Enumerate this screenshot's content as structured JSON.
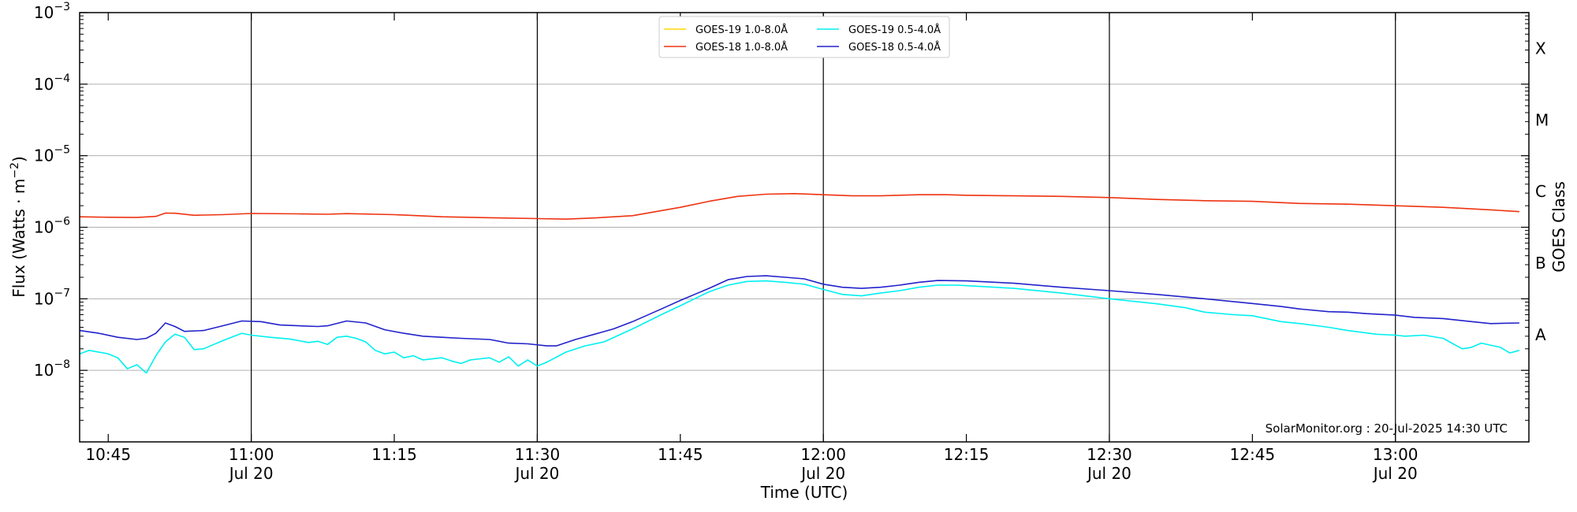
{
  "chart_data": {
    "type": "line",
    "title": "",
    "xlabel": "Time (UTC)",
    "ylabel_main": "Flux (Watts · m",
    "ylabel_sup": "−2",
    "ylabel_close": ")",
    "right_axis_label": "GOES Class",
    "yscale": "log",
    "ylim": [
      1e-09,
      0.001
    ],
    "xlim": [
      "10:42",
      "13:14"
    ],
    "grid": "horizontal gridlines at each decade; vertical lines at date-labelled ticks",
    "legend_placement": "top-center",
    "x_ticks": [
      {
        "time": "10:45",
        "label": "10:45",
        "sublabel": "",
        "major": false
      },
      {
        "time": "11:00",
        "label": "11:00",
        "sublabel": "Jul 20",
        "major": true
      },
      {
        "time": "11:15",
        "label": "11:15",
        "sublabel": "",
        "major": false
      },
      {
        "time": "11:30",
        "label": "11:30",
        "sublabel": "Jul 20",
        "major": true
      },
      {
        "time": "11:45",
        "label": "11:45",
        "sublabel": "",
        "major": false
      },
      {
        "time": "12:00",
        "label": "12:00",
        "sublabel": "Jul 20",
        "major": true
      },
      {
        "time": "12:15",
        "label": "12:15",
        "sublabel": "",
        "major": false
      },
      {
        "time": "12:30",
        "label": "12:30",
        "sublabel": "Jul 20",
        "major": true
      },
      {
        "time": "12:45",
        "label": "12:45",
        "sublabel": "",
        "major": false
      },
      {
        "time": "13:00",
        "label": "13:00",
        "sublabel": "Jul 20",
        "major": true
      }
    ],
    "y_ticks": [
      {
        "value": 1e-08,
        "mantissa": "10",
        "exponent": "−8"
      },
      {
        "value": 1e-07,
        "mantissa": "10",
        "exponent": "−7"
      },
      {
        "value": 1e-06,
        "mantissa": "10",
        "exponent": "−6"
      },
      {
        "value": 1e-05,
        "mantissa": "10",
        "exponent": "−5"
      },
      {
        "value": 0.0001,
        "mantissa": "10",
        "exponent": "−4"
      },
      {
        "value": 0.001,
        "mantissa": "10",
        "exponent": "−3"
      }
    ],
    "goes_classes": [
      {
        "label": "A",
        "value": 3.16e-08
      },
      {
        "label": "B",
        "value": 3.16e-07
      },
      {
        "label": "C",
        "value": 3.16e-06
      },
      {
        "label": "M",
        "value": 3.16e-05
      },
      {
        "label": "X",
        "value": 0.000316
      }
    ],
    "footer": "SolarMonitor.org : 20-Jul-2025 14:30 UTC",
    "series": [
      {
        "name": "GOES-19 1.0-8.0Å",
        "color": "#ffd700",
        "points": []
      },
      {
        "name": "GOES-18 1.0-8.0Å",
        "color": "#ee3311",
        "points": [
          [
            "10:42",
            1.4e-06
          ],
          [
            "10:45",
            1.38e-06
          ],
          [
            "10:48",
            1.37e-06
          ],
          [
            "10:50",
            1.42e-06
          ],
          [
            "10:51",
            1.58e-06
          ],
          [
            "10:52",
            1.57e-06
          ],
          [
            "10:54",
            1.47e-06
          ],
          [
            "10:57",
            1.5e-06
          ],
          [
            "11:00",
            1.56e-06
          ],
          [
            "11:05",
            1.54e-06
          ],
          [
            "11:08",
            1.52e-06
          ],
          [
            "11:10",
            1.55e-06
          ],
          [
            "11:15",
            1.5e-06
          ],
          [
            "11:20",
            1.4e-06
          ],
          [
            "11:25",
            1.36e-06
          ],
          [
            "11:30",
            1.32e-06
          ],
          [
            "11:33",
            1.3e-06
          ],
          [
            "11:36",
            1.35e-06
          ],
          [
            "11:40",
            1.45e-06
          ],
          [
            "11:45",
            1.9e-06
          ],
          [
            "11:48",
            2.3e-06
          ],
          [
            "11:51",
            2.7e-06
          ],
          [
            "11:54",
            2.9e-06
          ],
          [
            "11:57",
            2.95e-06
          ],
          [
            "12:00",
            2.85e-06
          ],
          [
            "12:03",
            2.75e-06
          ],
          [
            "12:06",
            2.75e-06
          ],
          [
            "12:10",
            2.85e-06
          ],
          [
            "12:13",
            2.85e-06
          ],
          [
            "12:15",
            2.8e-06
          ],
          [
            "12:20",
            2.75e-06
          ],
          [
            "12:25",
            2.7e-06
          ],
          [
            "12:30",
            2.6e-06
          ],
          [
            "12:35",
            2.45e-06
          ],
          [
            "12:40",
            2.35e-06
          ],
          [
            "12:45",
            2.3e-06
          ],
          [
            "12:50",
            2.15e-06
          ],
          [
            "12:55",
            2.1e-06
          ],
          [
            "13:00",
            2e-06
          ],
          [
            "13:05",
            1.9e-06
          ],
          [
            "13:10",
            1.75e-06
          ],
          [
            "13:13",
            1.65e-06
          ]
        ]
      },
      {
        "name": "GOES-19 0.5-4.0Å",
        "color": "#00f0f0",
        "points": [
          [
            "10:42",
            1.7e-08
          ],
          [
            "10:43",
            1.9e-08
          ],
          [
            "10:45",
            1.7e-08
          ],
          [
            "10:46",
            1.5e-08
          ],
          [
            "10:47",
            1.05e-08
          ],
          [
            "10:48",
            1.2e-08
          ],
          [
            "10:49",
            9.2e-09
          ],
          [
            "10:50",
            1.6e-08
          ],
          [
            "10:51",
            2.5e-08
          ],
          [
            "10:52",
            3.2e-08
          ],
          [
            "10:53",
            2.9e-08
          ],
          [
            "10:54",
            1.95e-08
          ],
          [
            "10:55",
            2e-08
          ],
          [
            "10:57",
            2.6e-08
          ],
          [
            "10:59",
            3.3e-08
          ],
          [
            "11:00",
            3.1e-08
          ],
          [
            "11:02",
            2.9e-08
          ],
          [
            "11:04",
            2.75e-08
          ],
          [
            "11:06",
            2.45e-08
          ],
          [
            "11:07",
            2.55e-08
          ],
          [
            "11:08",
            2.3e-08
          ],
          [
            "11:09",
            2.9e-08
          ],
          [
            "11:10",
            3e-08
          ],
          [
            "11:11",
            2.8e-08
          ],
          [
            "11:12",
            2.5e-08
          ],
          [
            "11:13",
            1.9e-08
          ],
          [
            "11:14",
            1.7e-08
          ],
          [
            "11:15",
            1.8e-08
          ],
          [
            "11:16",
            1.5e-08
          ],
          [
            "11:17",
            1.6e-08
          ],
          [
            "11:18",
            1.4e-08
          ],
          [
            "11:20",
            1.5e-08
          ],
          [
            "11:21",
            1.35e-08
          ],
          [
            "11:22",
            1.25e-08
          ],
          [
            "11:23",
            1.4e-08
          ],
          [
            "11:24",
            1.45e-08
          ],
          [
            "11:25",
            1.5e-08
          ],
          [
            "11:26",
            1.3e-08
          ],
          [
            "11:27",
            1.55e-08
          ],
          [
            "11:28",
            1.15e-08
          ],
          [
            "11:29",
            1.4e-08
          ],
          [
            "11:30",
            1.15e-08
          ],
          [
            "11:31",
            1.3e-08
          ],
          [
            "11:33",
            1.8e-08
          ],
          [
            "11:35",
            2.2e-08
          ],
          [
            "11:37",
            2.5e-08
          ],
          [
            "11:40",
            3.8e-08
          ],
          [
            "11:43",
            6e-08
          ],
          [
            "11:45",
            8e-08
          ],
          [
            "11:48",
            1.25e-07
          ],
          [
            "11:50",
            1.55e-07
          ],
          [
            "11:52",
            1.75e-07
          ],
          [
            "11:54",
            1.78e-07
          ],
          [
            "11:56",
            1.7e-07
          ],
          [
            "11:58",
            1.6e-07
          ],
          [
            "12:00",
            1.35e-07
          ],
          [
            "12:02",
            1.15e-07
          ],
          [
            "12:04",
            1.1e-07
          ],
          [
            "12:06",
            1.2e-07
          ],
          [
            "12:08",
            1.3e-07
          ],
          [
            "12:10",
            1.45e-07
          ],
          [
            "12:12",
            1.55e-07
          ],
          [
            "12:14",
            1.55e-07
          ],
          [
            "12:16",
            1.5e-07
          ],
          [
            "12:20",
            1.4e-07
          ],
          [
            "12:25",
            1.2e-07
          ],
          [
            "12:30",
            1e-07
          ],
          [
            "12:35",
            8.5e-08
          ],
          [
            "12:38",
            7.5e-08
          ],
          [
            "12:40",
            6.5e-08
          ],
          [
            "12:43",
            6e-08
          ],
          [
            "12:45",
            5.8e-08
          ],
          [
            "12:48",
            4.8e-08
          ],
          [
            "12:50",
            4.5e-08
          ],
          [
            "12:53",
            4e-08
          ],
          [
            "12:55",
            3.6e-08
          ],
          [
            "12:58",
            3.2e-08
          ],
          [
            "13:00",
            3.1e-08
          ],
          [
            "13:01",
            3e-08
          ],
          [
            "13:03",
            3.1e-08
          ],
          [
            "13:05",
            2.8e-08
          ],
          [
            "13:07",
            2e-08
          ],
          [
            "13:08",
            2.1e-08
          ],
          [
            "13:09",
            2.4e-08
          ],
          [
            "13:11",
            2.1e-08
          ],
          [
            "13:12",
            1.75e-08
          ],
          [
            "13:13",
            1.9e-08
          ]
        ]
      },
      {
        "name": "GOES-18 0.5-4.0Å",
        "color": "#2222cc",
        "points": [
          [
            "10:42",
            3.6e-08
          ],
          [
            "10:44",
            3.3e-08
          ],
          [
            "10:46",
            2.9e-08
          ],
          [
            "10:48",
            2.7e-08
          ],
          [
            "10:49",
            2.8e-08
          ],
          [
            "10:50",
            3.3e-08
          ],
          [
            "10:51",
            4.6e-08
          ],
          [
            "10:52",
            4.1e-08
          ],
          [
            "10:53",
            3.5e-08
          ],
          [
            "10:55",
            3.6e-08
          ],
          [
            "10:57",
            4.2e-08
          ],
          [
            "10:59",
            4.9e-08
          ],
          [
            "11:01",
            4.8e-08
          ],
          [
            "11:03",
            4.3e-08
          ],
          [
            "11:05",
            4.2e-08
          ],
          [
            "11:07",
            4.1e-08
          ],
          [
            "11:08",
            4.2e-08
          ],
          [
            "11:10",
            4.9e-08
          ],
          [
            "11:12",
            4.6e-08
          ],
          [
            "11:14",
            3.7e-08
          ],
          [
            "11:16",
            3.3e-08
          ],
          [
            "11:18",
            3e-08
          ],
          [
            "11:20",
            2.9e-08
          ],
          [
            "11:22",
            2.8e-08
          ],
          [
            "11:25",
            2.7e-08
          ],
          [
            "11:27",
            2.4e-08
          ],
          [
            "11:29",
            2.35e-08
          ],
          [
            "11:31",
            2.2e-08
          ],
          [
            "11:32",
            2.2e-08
          ],
          [
            "11:34",
            2.7e-08
          ],
          [
            "11:36",
            3.2e-08
          ],
          [
            "11:38",
            3.8e-08
          ],
          [
            "11:40",
            4.8e-08
          ],
          [
            "11:43",
            7.2e-08
          ],
          [
            "11:45",
            9.5e-08
          ],
          [
            "11:48",
            1.4e-07
          ],
          [
            "11:50",
            1.85e-07
          ],
          [
            "11:52",
            2.05e-07
          ],
          [
            "11:54",
            2.1e-07
          ],
          [
            "11:56",
            2e-07
          ],
          [
            "11:58",
            1.9e-07
          ],
          [
            "12:00",
            1.6e-07
          ],
          [
            "12:02",
            1.45e-07
          ],
          [
            "12:04",
            1.4e-07
          ],
          [
            "12:06",
            1.45e-07
          ],
          [
            "12:08",
            1.55e-07
          ],
          [
            "12:10",
            1.7e-07
          ],
          [
            "12:12",
            1.8e-07
          ],
          [
            "12:15",
            1.78e-07
          ],
          [
            "12:20",
            1.65e-07
          ],
          [
            "12:25",
            1.45e-07
          ],
          [
            "12:30",
            1.3e-07
          ],
          [
            "12:35",
            1.15e-07
          ],
          [
            "12:40",
            1e-07
          ],
          [
            "12:45",
            8.6e-08
          ],
          [
            "12:48",
            7.8e-08
          ],
          [
            "12:50",
            7.2e-08
          ],
          [
            "12:53",
            6.6e-08
          ],
          [
            "12:55",
            6.5e-08
          ],
          [
            "12:57",
            6.2e-08
          ],
          [
            "13:00",
            5.9e-08
          ],
          [
            "13:02",
            5.5e-08
          ],
          [
            "13:05",
            5.3e-08
          ],
          [
            "13:08",
            4.8e-08
          ],
          [
            "13:10",
            4.5e-08
          ],
          [
            "13:13",
            4.6e-08
          ]
        ]
      }
    ]
  }
}
